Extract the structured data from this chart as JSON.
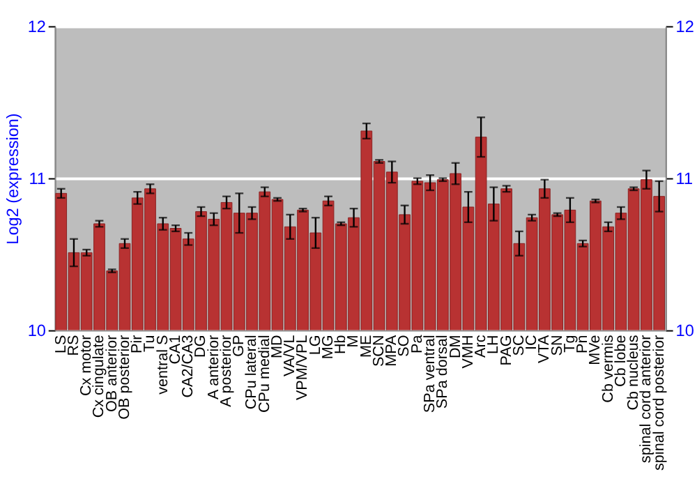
{
  "chart_data": {
    "type": "bar",
    "ylabel": "Log2 (expression)",
    "categories": [
      "LS",
      "RS",
      "Cx motor",
      "Cx cingulate",
      "OB anterior",
      "OB posterior",
      "Pir",
      "Tu",
      "ventral S",
      "CA1",
      "CA2/CA3",
      "DG",
      "A anterior",
      "A posterior",
      "GP",
      "CPu lateral",
      "CPu medial",
      "MD",
      "VA/VL",
      "VPM/VPL",
      "LG",
      "MG",
      "Hb",
      "M",
      "ME",
      "SCN",
      "MPA",
      "SO",
      "Pa",
      "SPa ventral",
      "SPa dorsal",
      "DM",
      "VMH",
      "Arc",
      "LH",
      "PAG",
      "SC",
      "IC",
      "VTA",
      "SN",
      "Tg",
      "Pn",
      "MVe",
      "Cb vermis",
      "Cb lobe",
      "Cb nucleus",
      "spinal cord anterior",
      "spinal cord posterior"
    ],
    "series": [
      {
        "color": "#b83232",
        "values": [
          10.9,
          10.51,
          10.51,
          10.7,
          10.39,
          10.57,
          10.87,
          10.93,
          10.7,
          10.67,
          10.6,
          10.78,
          10.73,
          10.84,
          10.77,
          10.77,
          10.91,
          10.86,
          10.68,
          10.79,
          10.64,
          10.85,
          10.7,
          10.74,
          11.31,
          11.11,
          11.04,
          10.76,
          10.98,
          10.97,
          10.99,
          11.03,
          10.81,
          11.27,
          10.83,
          10.93,
          10.57,
          10.74,
          10.93,
          10.76,
          10.79,
          10.57,
          10.85,
          10.68,
          10.77,
          10.93,
          10.99,
          10.88
        ],
        "errors": [
          0.03,
          0.09,
          0.02,
          0.02,
          0.01,
          0.03,
          0.04,
          0.03,
          0.04,
          0.02,
          0.04,
          0.03,
          0.04,
          0.04,
          0.13,
          0.04,
          0.03,
          0.01,
          0.08,
          0.01,
          0.1,
          0.03,
          0.01,
          0.06,
          0.05,
          0.01,
          0.07,
          0.06,
          0.02,
          0.05,
          0.01,
          0.07,
          0.1,
          0.13,
          0.11,
          0.02,
          0.08,
          0.02,
          0.06,
          0.01,
          0.08,
          0.02,
          0.01,
          0.03,
          0.04,
          0.01,
          0.06,
          0.1
        ]
      }
    ],
    "ylim": [
      10,
      12
    ],
    "yticks": [
      10,
      11,
      12
    ],
    "y2lim": [
      10,
      12
    ],
    "y2ticks": [
      10,
      11,
      12
    ],
    "grid": "y",
    "legend": false
  }
}
